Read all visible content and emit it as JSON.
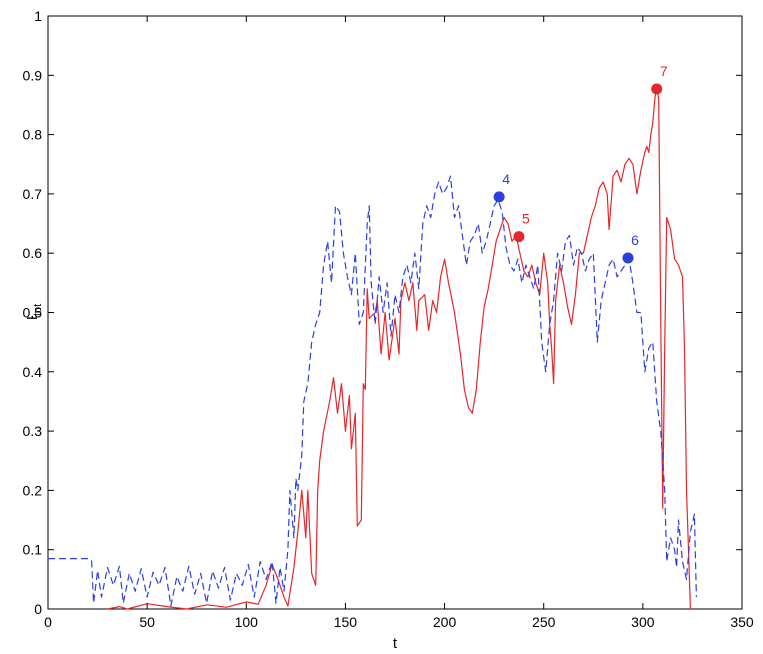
{
  "chart_data": {
    "type": "line",
    "title": "",
    "xlabel": "t",
    "ylabel": {
      "main": "I",
      "sub": "tot"
    },
    "xlim": [
      0,
      350
    ],
    "ylim": [
      0,
      1
    ],
    "xticks": [
      0,
      50,
      100,
      150,
      200,
      250,
      300,
      350
    ],
    "yticks": [
      0,
      0.1,
      0.2,
      0.3,
      0.4,
      0.5,
      0.6,
      0.7,
      0.8,
      0.9,
      1
    ],
    "xtick_labels": [
      "0",
      "50",
      "100",
      "150",
      "200",
      "250",
      "300",
      "350"
    ],
    "ytick_labels": [
      "0",
      "0.1",
      "0.2",
      "0.3",
      "0.4",
      "0.5",
      "0.6",
      "0.7",
      "0.8",
      "0.9",
      "1"
    ],
    "grid": false,
    "legend": "none",
    "series": [
      {
        "color": "#e8262a",
        "line_style": "solid",
        "points": [
          [
            30,
            0
          ],
          [
            36,
            0.004
          ],
          [
            40,
            0
          ],
          [
            50,
            0.009
          ],
          [
            60,
            0.004
          ],
          [
            70,
            0
          ],
          [
            80,
            0.007
          ],
          [
            90,
            0.003
          ],
          [
            100,
            0.012
          ],
          [
            106,
            0.008
          ],
          [
            110,
            0.04
          ],
          [
            113,
            0.075
          ],
          [
            116,
            0.05
          ],
          [
            119,
            0.02
          ],
          [
            121,
            0.005
          ],
          [
            124,
            0.07
          ],
          [
            126,
            0.13
          ],
          [
            128,
            0.2
          ],
          [
            130,
            0.12
          ],
          [
            131,
            0.2
          ],
          [
            133,
            0.06
          ],
          [
            135,
            0.04
          ],
          [
            136,
            0.2
          ],
          [
            137,
            0.25
          ],
          [
            139,
            0.3
          ],
          [
            142,
            0.35
          ],
          [
            144,
            0.39
          ],
          [
            146,
            0.33
          ],
          [
            148,
            0.38
          ],
          [
            150,
            0.3
          ],
          [
            152,
            0.36
          ],
          [
            153,
            0.27
          ],
          [
            155,
            0.33
          ],
          [
            156,
            0.14
          ],
          [
            158,
            0.15
          ],
          [
            159,
            0.38
          ],
          [
            160,
            0.37
          ],
          [
            161,
            0.54
          ],
          [
            162,
            0.49
          ],
          [
            165,
            0.5
          ],
          [
            166,
            0.52
          ],
          [
            168,
            0.43
          ],
          [
            170,
            0.5
          ],
          [
            172,
            0.42
          ],
          [
            175,
            0.49
          ],
          [
            177,
            0.43
          ],
          [
            178,
            0.52
          ],
          [
            180,
            0.55
          ],
          [
            182,
            0.52
          ],
          [
            184,
            0.55
          ],
          [
            186,
            0.47
          ],
          [
            187,
            0.52
          ],
          [
            190,
            0.53
          ],
          [
            192,
            0.47
          ],
          [
            194,
            0.52
          ],
          [
            196,
            0.5
          ],
          [
            198,
            0.56
          ],
          [
            200,
            0.59
          ],
          [
            202,
            0.55
          ],
          [
            205,
            0.5
          ],
          [
            208,
            0.43
          ],
          [
            210,
            0.37
          ],
          [
            212,
            0.34
          ],
          [
            214,
            0.33
          ],
          [
            216,
            0.37
          ],
          [
            218,
            0.45
          ],
          [
            220,
            0.51
          ],
          [
            222,
            0.54
          ],
          [
            224,
            0.58
          ],
          [
            226,
            0.62
          ],
          [
            228,
            0.64
          ],
          [
            230,
            0.66
          ],
          [
            232,
            0.65
          ],
          [
            234,
            0.62
          ],
          [
            236,
            0.63
          ],
          [
            238,
            0.6
          ],
          [
            240,
            0.57
          ],
          [
            242,
            0.56
          ],
          [
            244,
            0.58
          ],
          [
            246,
            0.55
          ],
          [
            248,
            0.53
          ],
          [
            250,
            0.6
          ],
          [
            252,
            0.55
          ],
          [
            253,
            0.48
          ],
          [
            254,
            0.44
          ],
          [
            255,
            0.38
          ],
          [
            256,
            0.52
          ],
          [
            258,
            0.58
          ],
          [
            260,
            0.55
          ],
          [
            262,
            0.51
          ],
          [
            264,
            0.48
          ],
          [
            266,
            0.53
          ],
          [
            268,
            0.6
          ],
          [
            270,
            0.6
          ],
          [
            272,
            0.63
          ],
          [
            274,
            0.66
          ],
          [
            276,
            0.68
          ],
          [
            278,
            0.71
          ],
          [
            280,
            0.72
          ],
          [
            282,
            0.7
          ],
          [
            283,
            0.64
          ],
          [
            285,
            0.73
          ],
          [
            287,
            0.74
          ],
          [
            289,
            0.72
          ],
          [
            291,
            0.75
          ],
          [
            293,
            0.76
          ],
          [
            295,
            0.75
          ],
          [
            297,
            0.7
          ],
          [
            299,
            0.74
          ],
          [
            301,
            0.77
          ],
          [
            302,
            0.78
          ],
          [
            303,
            0.77
          ],
          [
            304,
            0.8
          ],
          [
            305,
            0.82
          ],
          [
            306,
            0.86
          ],
          [
            307,
            0.88
          ],
          [
            308,
            0.86
          ],
          [
            309,
            0.5
          ],
          [
            310,
            0.17
          ],
          [
            311,
            0.44
          ],
          [
            312,
            0.66
          ],
          [
            314,
            0.64
          ],
          [
            316,
            0.59
          ],
          [
            318,
            0.58
          ],
          [
            320,
            0.56
          ],
          [
            321,
            0.44
          ],
          [
            322,
            0.2
          ],
          [
            323,
            0.1
          ],
          [
            324,
            0
          ]
        ]
      },
      {
        "color": "#2c3fe0",
        "line_style": "dashed",
        "points": [
          [
            0,
            0.085
          ],
          [
            20,
            0.085
          ],
          [
            22,
            0.082
          ],
          [
            23,
            0.01
          ],
          [
            25,
            0.065
          ],
          [
            27,
            0.02
          ],
          [
            30,
            0.07
          ],
          [
            33,
            0.04
          ],
          [
            36,
            0.072
          ],
          [
            38,
            0.01
          ],
          [
            41,
            0.06
          ],
          [
            44,
            0.03
          ],
          [
            47,
            0.068
          ],
          [
            50,
            0.02
          ],
          [
            53,
            0.062
          ],
          [
            56,
            0.04
          ],
          [
            59,
            0.07
          ],
          [
            62,
            0.005
          ],
          [
            65,
            0.055
          ],
          [
            68,
            0.03
          ],
          [
            71,
            0.072
          ],
          [
            74,
            0.025
          ],
          [
            77,
            0.06
          ],
          [
            80,
            0.01
          ],
          [
            83,
            0.064
          ],
          [
            86,
            0.035
          ],
          [
            89,
            0.07
          ],
          [
            92,
            0.015
          ],
          [
            95,
            0.06
          ],
          [
            98,
            0.04
          ],
          [
            101,
            0.075
          ],
          [
            104,
            0.02
          ],
          [
            107,
            0.08
          ],
          [
            110,
            0.05
          ],
          [
            113,
            0.08
          ],
          [
            115,
            0.01
          ],
          [
            117,
            0.07
          ],
          [
            119,
            0.03
          ],
          [
            121,
            0.1
          ],
          [
            122,
            0.2
          ],
          [
            124,
            0.12
          ],
          [
            125,
            0.22
          ],
          [
            126,
            0.2
          ],
          [
            128,
            0.26
          ],
          [
            129,
            0.35
          ],
          [
            131,
            0.38
          ],
          [
            133,
            0.45
          ],
          [
            135,
            0.48
          ],
          [
            137,
            0.5
          ],
          [
            139,
            0.58
          ],
          [
            141,
            0.62
          ],
          [
            143,
            0.55
          ],
          [
            145,
            0.68
          ],
          [
            147,
            0.67
          ],
          [
            149,
            0.6
          ],
          [
            151,
            0.56
          ],
          [
            153,
            0.53
          ],
          [
            155,
            0.6
          ],
          [
            157,
            0.48
          ],
          [
            159,
            0.5
          ],
          [
            161,
            0.65
          ],
          [
            162,
            0.68
          ],
          [
            163,
            0.55
          ],
          [
            165,
            0.48
          ],
          [
            167,
            0.56
          ],
          [
            169,
            0.5
          ],
          [
            171,
            0.55
          ],
          [
            173,
            0.46
          ],
          [
            175,
            0.53
          ],
          [
            177,
            0.5
          ],
          [
            179,
            0.56
          ],
          [
            181,
            0.58
          ],
          [
            183,
            0.55
          ],
          [
            185,
            0.6
          ],
          [
            187,
            0.54
          ],
          [
            189,
            0.65
          ],
          [
            191,
            0.68
          ],
          [
            193,
            0.66
          ],
          [
            195,
            0.7
          ],
          [
            197,
            0.72
          ],
          [
            199,
            0.7
          ],
          [
            201,
            0.71
          ],
          [
            203,
            0.73
          ],
          [
            205,
            0.66
          ],
          [
            207,
            0.68
          ],
          [
            209,
            0.63
          ],
          [
            211,
            0.58
          ],
          [
            213,
            0.62
          ],
          [
            215,
            0.63
          ],
          [
            217,
            0.65
          ],
          [
            219,
            0.6
          ],
          [
            221,
            0.62
          ],
          [
            223,
            0.65
          ],
          [
            225,
            0.68
          ],
          [
            227,
            0.69
          ],
          [
            229,
            0.67
          ],
          [
            231,
            0.61
          ],
          [
            233,
            0.58
          ],
          [
            235,
            0.57
          ],
          [
            237,
            0.59
          ],
          [
            239,
            0.55
          ],
          [
            241,
            0.58
          ],
          [
            243,
            0.56
          ],
          [
            245,
            0.54
          ],
          [
            247,
            0.58
          ],
          [
            249,
            0.45
          ],
          [
            251,
            0.4
          ],
          [
            253,
            0.48
          ],
          [
            255,
            0.52
          ],
          [
            257,
            0.6
          ],
          [
            259,
            0.57
          ],
          [
            261,
            0.62
          ],
          [
            263,
            0.63
          ],
          [
            265,
            0.58
          ],
          [
            267,
            0.61
          ],
          [
            269,
            0.6
          ],
          [
            271,
            0.57
          ],
          [
            273,
            0.59
          ],
          [
            275,
            0.6
          ],
          [
            277,
            0.45
          ],
          [
            279,
            0.52
          ],
          [
            281,
            0.55
          ],
          [
            283,
            0.58
          ],
          [
            285,
            0.59
          ],
          [
            287,
            0.56
          ],
          [
            289,
            0.57
          ],
          [
            291,
            0.58
          ],
          [
            293,
            0.59
          ],
          [
            295,
            0.55
          ],
          [
            297,
            0.5
          ],
          [
            299,
            0.5
          ],
          [
            301,
            0.4
          ],
          [
            303,
            0.44
          ],
          [
            305,
            0.45
          ],
          [
            307,
            0.35
          ],
          [
            309,
            0.3
          ],
          [
            311,
            0.2
          ],
          [
            312,
            0.08
          ],
          [
            314,
            0.12
          ],
          [
            316,
            0.1
          ],
          [
            317,
            0.07
          ],
          [
            318,
            0.15
          ],
          [
            320,
            0.08
          ],
          [
            322,
            0.05
          ],
          [
            324,
            0.13
          ],
          [
            326,
            0.16
          ],
          [
            327,
            0.02
          ]
        ]
      }
    ],
    "markers": [
      {
        "label": "4",
        "x": 227.5,
        "y": 0.695,
        "color": "#2c3fe0"
      },
      {
        "label": "5",
        "x": 237.5,
        "y": 0.628,
        "color": "#e8262a"
      },
      {
        "label": "6",
        "x": 292.5,
        "y": 0.592,
        "color": "#2c3fe0"
      },
      {
        "label": "7",
        "x": 307,
        "y": 0.877,
        "color": "#e8262a"
      }
    ]
  }
}
